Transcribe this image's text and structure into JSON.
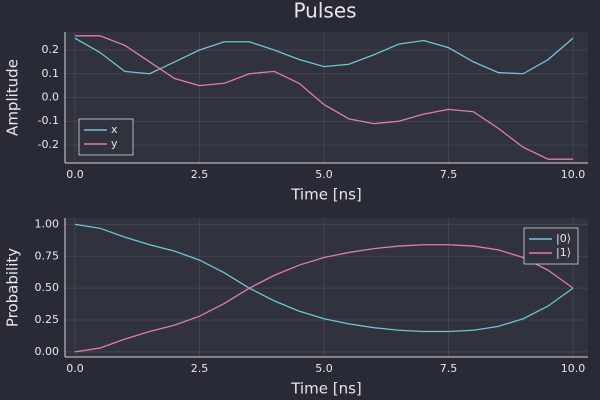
{
  "title": "Pulses",
  "chart_data": [
    {
      "type": "line",
      "xlabel": "Time [ns]",
      "ylabel": "Amplitude",
      "x": [
        0,
        0.5,
        1,
        1.5,
        2,
        2.5,
        3,
        3.5,
        4,
        4.5,
        5,
        5.5,
        6,
        6.5,
        7,
        7.5,
        8,
        8.5,
        9,
        9.5,
        10
      ],
      "series": [
        {
          "name": "x",
          "color": "#6cc5d6",
          "values": [
            0.25,
            0.19,
            0.11,
            0.1,
            0.15,
            0.2,
            0.235,
            0.235,
            0.2,
            0.16,
            0.13,
            0.14,
            0.18,
            0.225,
            0.24,
            0.21,
            0.15,
            0.105,
            0.1,
            0.16,
            0.25
          ]
        },
        {
          "name": "y",
          "color": "#e37ab6",
          "values": [
            0.26,
            0.26,
            0.22,
            0.15,
            0.08,
            0.05,
            0.06,
            0.1,
            0.11,
            0.06,
            -0.03,
            -0.09,
            -0.11,
            -0.1,
            -0.07,
            -0.05,
            -0.06,
            -0.13,
            -0.21,
            -0.26,
            -0.26
          ]
        }
      ],
      "xlim": [
        -0.2,
        10.3
      ],
      "ylim": [
        -0.276,
        0.276
      ],
      "xticks": [
        {
          "value": 0,
          "label": "0.0"
        },
        2.5,
        {
          "value": 5,
          "label": "5.0"
        },
        7.5,
        {
          "value": 10,
          "label": "10.0"
        }
      ],
      "yticks": [
        -0.2,
        -0.1,
        {
          "value": 0,
          "label": "0.0"
        },
        0.1,
        0.2
      ],
      "grid": true,
      "legend": "bottom left"
    },
    {
      "type": "line",
      "xlabel": "Time [ns]",
      "ylabel": "Probability",
      "x": [
        0,
        0.5,
        1,
        1.5,
        2,
        2.5,
        3,
        3.5,
        4,
        4.5,
        5,
        5.5,
        6,
        6.5,
        7,
        7.5,
        8,
        8.5,
        9,
        9.5,
        10
      ],
      "series": [
        {
          "name": "|0⟩",
          "color": "#6cc5d6",
          "values": [
            1.0,
            0.97,
            0.9,
            0.84,
            0.79,
            0.72,
            0.62,
            0.5,
            0.4,
            0.32,
            0.26,
            0.22,
            0.19,
            0.17,
            0.16,
            0.16,
            0.17,
            0.2,
            0.26,
            0.36,
            0.5
          ]
        },
        {
          "name": "|1⟩",
          "color": "#e37ab6",
          "values": [
            0.0,
            0.03,
            0.1,
            0.16,
            0.21,
            0.28,
            0.38,
            0.5,
            0.6,
            0.68,
            0.74,
            0.78,
            0.81,
            0.83,
            0.84,
            0.84,
            0.83,
            0.8,
            0.74,
            0.64,
            0.5
          ]
        }
      ],
      "xlim": [
        -0.2,
        10.3
      ],
      "ylim": [
        -0.04,
        1.05
      ],
      "xticks": [
        {
          "value": 0,
          "label": "0.0"
        },
        2.5,
        {
          "value": 5,
          "label": "5.0"
        },
        7.5,
        {
          "value": 10,
          "label": "10.0"
        }
      ],
      "yticks": [
        {
          "value": 0,
          "label": "0.00"
        },
        {
          "value": 0.25,
          "label": "0.25"
        },
        {
          "value": 0.5,
          "label": "0.50"
        },
        {
          "value": 0.75,
          "label": "0.75"
        },
        {
          "value": 1,
          "label": "1.00"
        }
      ],
      "grid": true,
      "legend": "top right"
    }
  ]
}
